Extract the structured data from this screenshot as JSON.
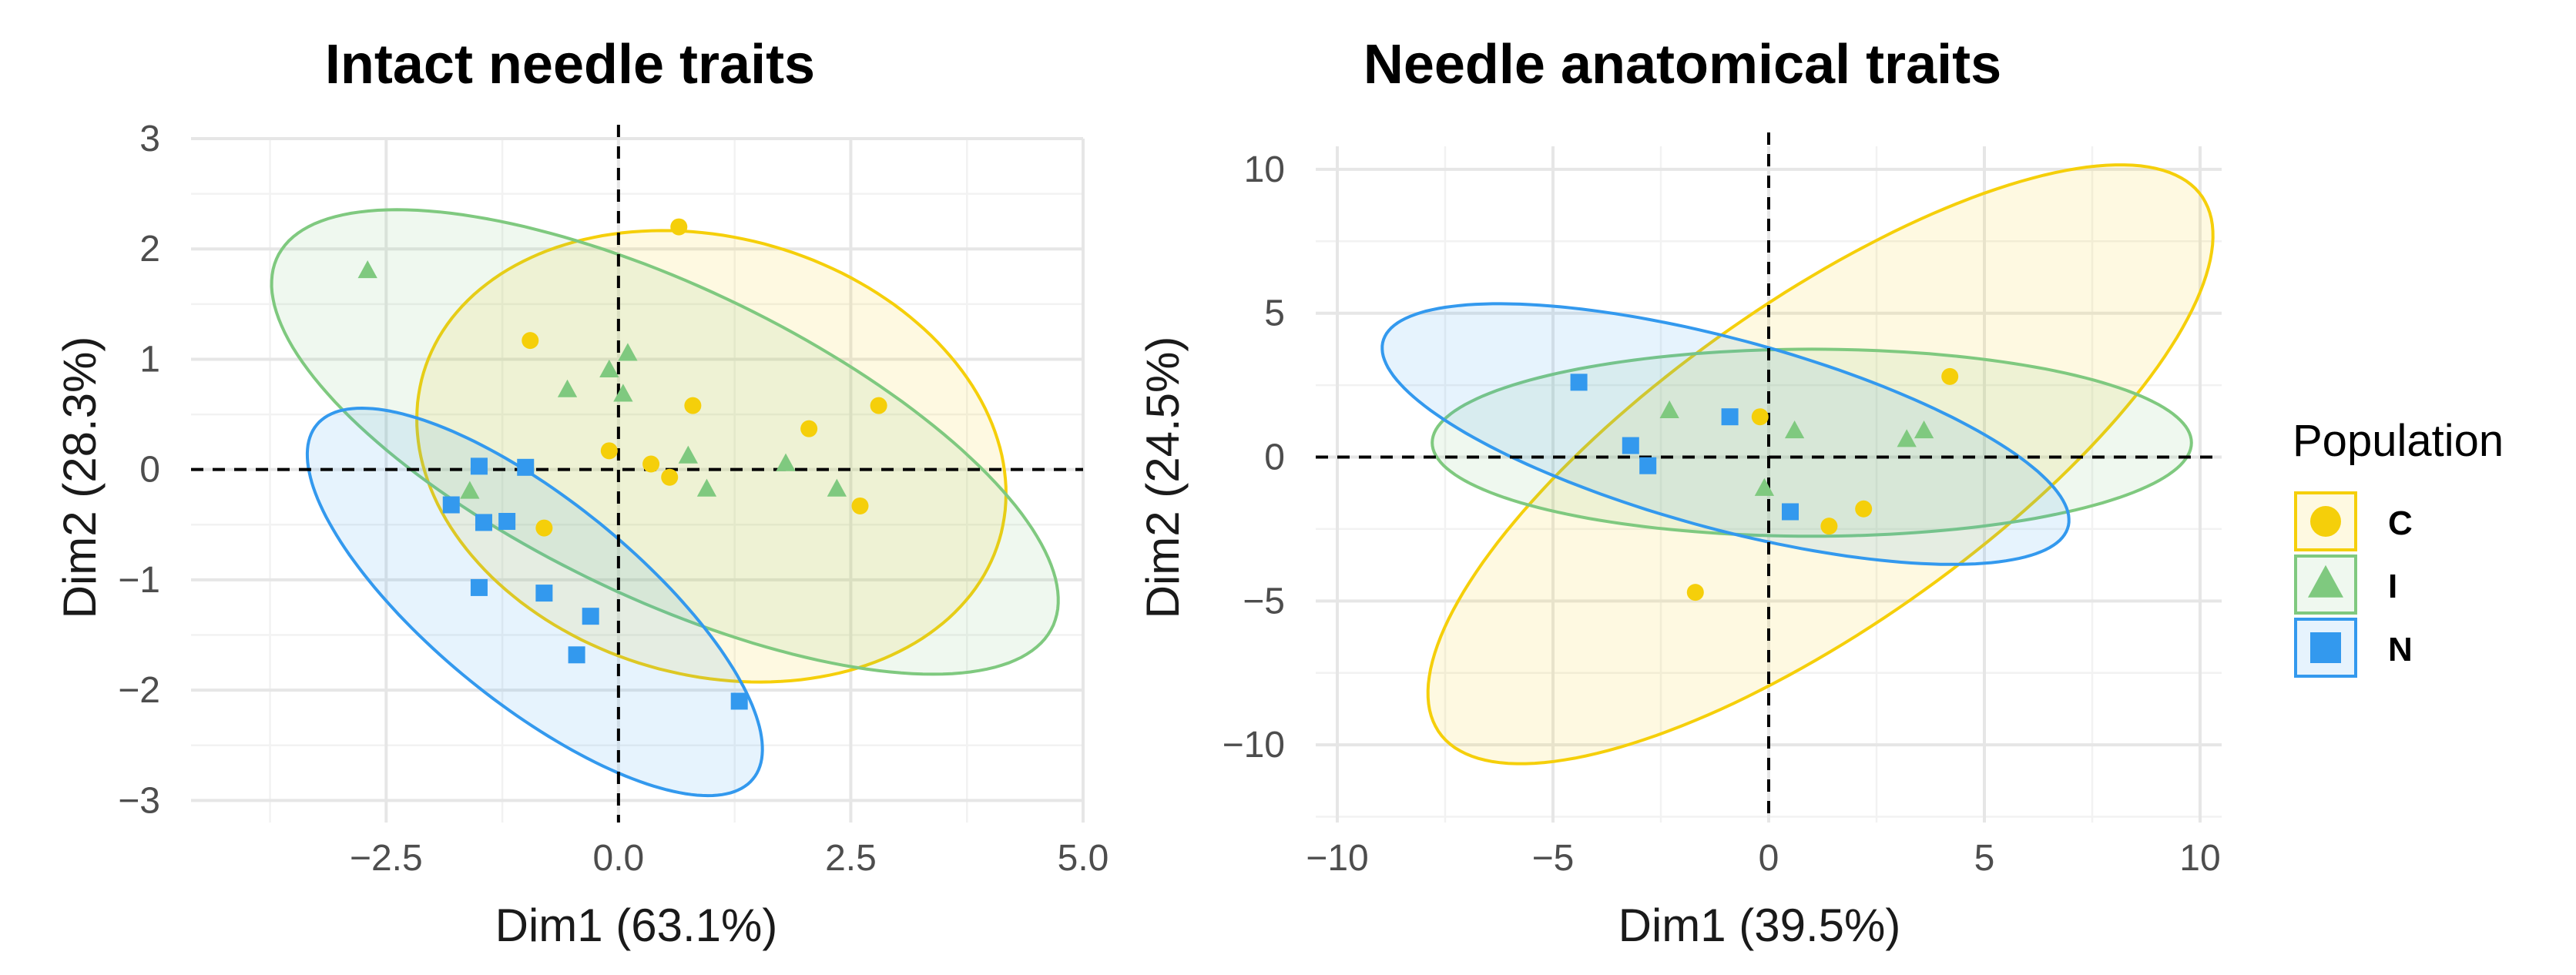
{
  "colors": {
    "C": "#F5CF0A",
    "I": "#7FC97F",
    "N": "#3399EE"
  },
  "legend": {
    "title": "Population",
    "items": [
      {
        "key": "C",
        "label": "C",
        "shape": "circle"
      },
      {
        "key": "I",
        "label": "I",
        "shape": "triangle"
      },
      {
        "key": "N",
        "label": "N",
        "shape": "square"
      }
    ]
  },
  "chart_data": [
    {
      "type": "scatter",
      "title": "Intact needle traits",
      "xlabel": "Dim1 (63.1%)",
      "ylabel": "Dim2 (28.3%)",
      "xlim": [
        -4.6,
        5.0
      ],
      "ylim": [
        -3.2,
        3.0
      ],
      "xticks": [
        -2.5,
        0,
        2.5,
        5
      ],
      "xtick_labels": [
        "−2.5",
        "0.0",
        "2.5",
        "5.0"
      ],
      "yticks": [
        -3,
        -2,
        -1,
        0,
        1,
        2,
        3
      ],
      "ytick_labels": [
        "−3",
        "−2",
        "−1",
        "0",
        "1",
        "2",
        "3"
      ],
      "xminor": [
        -3.75,
        -1.25,
        1.25,
        3.75
      ],
      "yminor": [
        -2.5,
        -1.5,
        -0.5,
        0.5,
        1.5,
        2.5
      ],
      "ellipses": [
        {
          "group": "C",
          "center": [
            1.0,
            0.12
          ],
          "semi_axes": [
            3.2,
            2.0
          ],
          "angle_deg": -10
        },
        {
          "group": "I",
          "center": [
            0.5,
            0.25
          ],
          "semi_axes": [
            4.5,
            1.45
          ],
          "angle_deg": -21
        },
        {
          "group": "N",
          "center": [
            -0.9,
            -1.2
          ],
          "semi_axes": [
            2.85,
            0.98
          ],
          "angle_deg": -33
        }
      ],
      "series": [
        {
          "name": "C",
          "points": [
            [
              0.65,
              2.2
            ],
            [
              -0.95,
              1.17
            ],
            [
              0.8,
              0.58
            ],
            [
              2.8,
              0.58
            ],
            [
              2.05,
              0.37
            ],
            [
              -0.1,
              0.17
            ],
            [
              0.35,
              0.05
            ],
            [
              0.55,
              -0.07
            ],
            [
              2.6,
              -0.33
            ],
            [
              -0.8,
              -0.53
            ]
          ]
        },
        {
          "name": "I",
          "points": [
            [
              -2.7,
              1.8
            ],
            [
              0.1,
              1.05
            ],
            [
              -0.1,
              0.9
            ],
            [
              0.05,
              0.68
            ],
            [
              -0.55,
              0.72
            ],
            [
              0.75,
              0.12
            ],
            [
              1.8,
              0.05
            ],
            [
              0.95,
              -0.18
            ],
            [
              2.35,
              -0.18
            ],
            [
              -1.6,
              -0.2
            ]
          ]
        },
        {
          "name": "N",
          "points": [
            [
              -1.5,
              0.03
            ],
            [
              -1.0,
              0.02
            ],
            [
              -1.8,
              -0.32
            ],
            [
              -1.45,
              -0.48
            ],
            [
              -1.2,
              -0.47
            ],
            [
              -1.5,
              -1.07
            ],
            [
              -0.8,
              -1.12
            ],
            [
              -0.3,
              -1.33
            ],
            [
              -0.45,
              -1.68
            ],
            [
              1.3,
              -2.1
            ]
          ]
        }
      ]
    },
    {
      "type": "scatter",
      "title": "Needle anatomical traits",
      "xlabel": "Dim1 (39.5%)",
      "ylabel": "Dim2 (24.5%)",
      "xlim": [
        -10.5,
        10.5
      ],
      "ylim": [
        -12.7,
        10.8
      ],
      "xticks": [
        -10,
        -5,
        0,
        5,
        10
      ],
      "xtick_labels": [
        "−10",
        "−5",
        "0",
        "5",
        "10"
      ],
      "yticks": [
        -10,
        -5,
        0,
        5,
        10
      ],
      "ytick_labels": [
        "−10",
        "−5",
        "0",
        "5",
        "10"
      ],
      "xminor": [
        -7.5,
        -2.5,
        2.5,
        7.5
      ],
      "yminor": [
        -12.5,
        -7.5,
        -2.5,
        2.5,
        7.5
      ],
      "ellipses": [
        {
          "group": "C",
          "center": [
            1.2,
            -0.25
          ],
          "semi_axes": [
            13.0,
            4.7
          ],
          "angle_deg": 50
        },
        {
          "group": "I",
          "center": [
            1.0,
            0.5
          ],
          "semi_axes": [
            8.8,
            3.25
          ],
          "angle_deg": 0
        },
        {
          "group": "N",
          "center": [
            -1.0,
            0.8
          ],
          "semi_axes": [
            8.6,
            3.15
          ],
          "angle_deg": -24
        }
      ],
      "series": [
        {
          "name": "C",
          "points": [
            [
              4.2,
              2.8
            ],
            [
              -0.2,
              1.4
            ],
            [
              2.2,
              -1.8
            ],
            [
              1.4,
              -2.4
            ],
            [
              -1.7,
              -4.7
            ]
          ]
        },
        {
          "name": "I",
          "points": [
            [
              -2.3,
              1.6
            ],
            [
              0.6,
              0.9
            ],
            [
              3.6,
              0.9
            ],
            [
              3.2,
              0.6
            ],
            [
              -0.1,
              -1.1
            ]
          ]
        },
        {
          "name": "N",
          "points": [
            [
              -4.4,
              2.6
            ],
            [
              -0.9,
              1.4
            ],
            [
              -3.2,
              0.4
            ],
            [
              -2.8,
              -0.3
            ],
            [
              0.5,
              -1.9
            ]
          ]
        }
      ]
    }
  ]
}
